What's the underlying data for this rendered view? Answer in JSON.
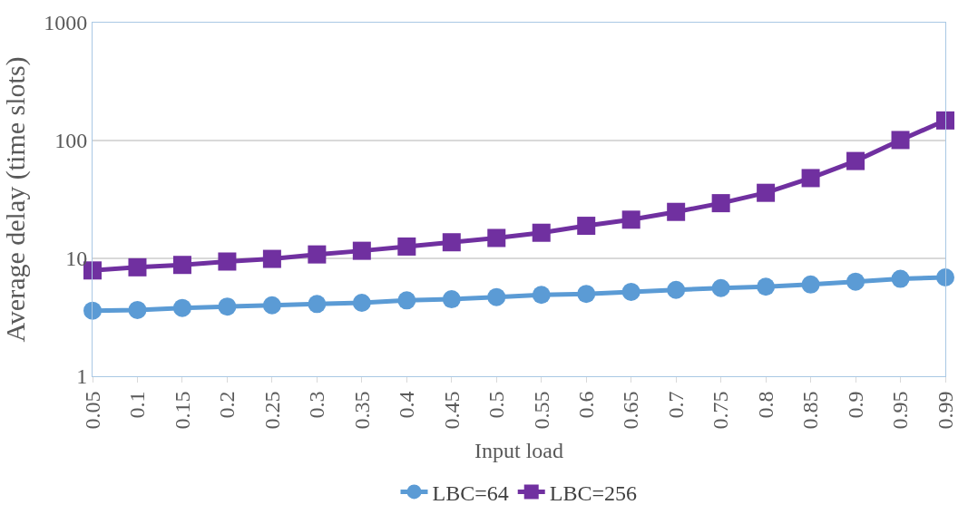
{
  "chart_data": {
    "type": "line",
    "xlabel": "Input load",
    "ylabel": "Average delay (time slots)",
    "categories": [
      "0.05",
      "0.1",
      "0.15",
      "0.2",
      "0.25",
      "0.3",
      "0.35",
      "0.4",
      "0.45",
      "0.5",
      "0.55",
      "0.6",
      "0.65",
      "0.7",
      "0.75",
      "0.8",
      "0.85",
      "0.9",
      "0.95",
      "0.99"
    ],
    "series": [
      {
        "name": "LBC=64",
        "color": "#5b9bd5",
        "marker": "circle",
        "values": [
          3.6,
          3.65,
          3.8,
          3.9,
          4.0,
          4.1,
          4.2,
          4.4,
          4.5,
          4.7,
          4.9,
          5.0,
          5.2,
          5.4,
          5.6,
          5.75,
          6.0,
          6.35,
          6.7,
          6.9
        ]
      },
      {
        "name": "LBC=256",
        "color": "#7030a0",
        "marker": "square",
        "values": [
          7.9,
          8.4,
          8.8,
          9.4,
          9.9,
          10.8,
          11.6,
          12.6,
          13.7,
          14.9,
          16.5,
          18.9,
          21.3,
          24.8,
          29.4,
          36,
          48,
          67,
          101,
          148
        ]
      }
    ],
    "log": "y",
    "ylim": [
      1,
      1000
    ],
    "yticks": [
      1,
      10,
      100,
      1000
    ],
    "grid": "y",
    "legend": "bottom",
    "line_style": "solid"
  }
}
